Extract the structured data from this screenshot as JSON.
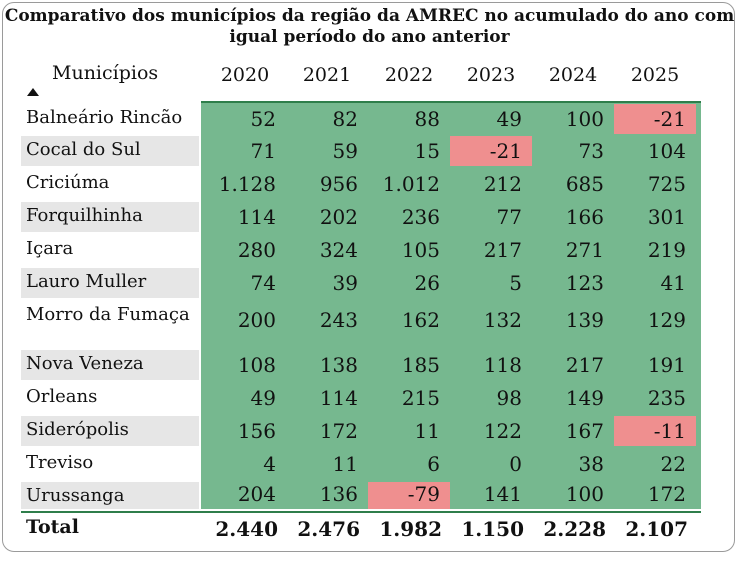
{
  "title": "Comparativo dos municípios da região da AMREC no acumulado do ano com igual período do ano anterior",
  "colors": {
    "positive": "#76b88f",
    "negative": "#ef8f8f",
    "row_shade": "#e6e6e6",
    "rule": "#2f7e4b"
  },
  "table": {
    "header_label": "Municípios",
    "years": [
      "2020",
      "2021",
      "2022",
      "2023",
      "2024",
      "2025"
    ],
    "rows": [
      {
        "name": "Balneário Rincão",
        "values": [
          "52",
          "82",
          "88",
          "49",
          "100",
          "-21"
        ]
      },
      {
        "name": "Cocal do Sul",
        "values": [
          "71",
          "59",
          "15",
          "-21",
          "73",
          "104"
        ]
      },
      {
        "name": "Criciúma",
        "values": [
          "1.128",
          "956",
          "1.012",
          "212",
          "685",
          "725"
        ]
      },
      {
        "name": "Forquilhinha",
        "values": [
          "114",
          "202",
          "236",
          "77",
          "166",
          "301"
        ]
      },
      {
        "name": "Içara",
        "values": [
          "280",
          "324",
          "105",
          "217",
          "271",
          "219"
        ]
      },
      {
        "name": "Lauro Muller",
        "values": [
          "74",
          "39",
          "26",
          "5",
          "123",
          "41"
        ]
      },
      {
        "name": "Morro da Fumaça",
        "values": [
          "200",
          "243",
          "162",
          "132",
          "139",
          "129"
        ]
      },
      {
        "name": "Nova Veneza",
        "values": [
          "108",
          "138",
          "185",
          "118",
          "217",
          "191"
        ]
      },
      {
        "name": "Orleans",
        "values": [
          "49",
          "114",
          "215",
          "98",
          "149",
          "235"
        ]
      },
      {
        "name": "Siderópolis",
        "values": [
          "156",
          "172",
          "11",
          "122",
          "167",
          "-11"
        ]
      },
      {
        "name": "Treviso",
        "values": [
          "4",
          "11",
          "6",
          "0",
          "38",
          "22"
        ]
      },
      {
        "name": "Urussanga",
        "values": [
          "204",
          "136",
          "-79",
          "141",
          "100",
          "172"
        ]
      }
    ],
    "total": {
      "label": "Total",
      "values": [
        "2.440",
        "2.476",
        "1.982",
        "1.150",
        "2.228",
        "2.107"
      ]
    }
  }
}
